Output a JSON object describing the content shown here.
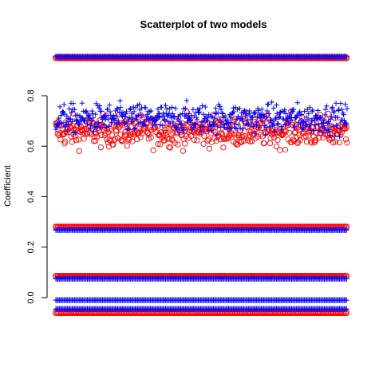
{
  "chart_data": {
    "type": "scatter",
    "title": "Scatterplot of two models",
    "xlabel": "",
    "ylabel": "Coefficient",
    "ylim": [
      -0.06,
      0.96
    ],
    "yticks": [
      0.0,
      0.2,
      0.4,
      0.6,
      0.8
    ],
    "ytick_labels": [
      "0.0",
      "0.2",
      "0.4",
      "0.6",
      "0.8"
    ],
    "x_axis_drawn": false,
    "n_points": 500,
    "grid": false,
    "legend": "none",
    "series": [
      {
        "name": "",
        "marker": "circle",
        "color": "#ff0000",
        "bands": [
          0.95,
          0.28,
          0.085,
          -0.06
        ],
        "cloud": {
          "center": 0.66,
          "spread": 0.03,
          "min": 0.58,
          "max": 0.79
        }
      },
      {
        "name": "",
        "marker": "plus",
        "color": "#0000ff",
        "bands": [
          0.955,
          0.268,
          0.075,
          -0.01,
          -0.045
        ],
        "cloud": {
          "center": 0.71,
          "spread": 0.028,
          "min": 0.62,
          "max": 0.83
        }
      }
    ]
  }
}
